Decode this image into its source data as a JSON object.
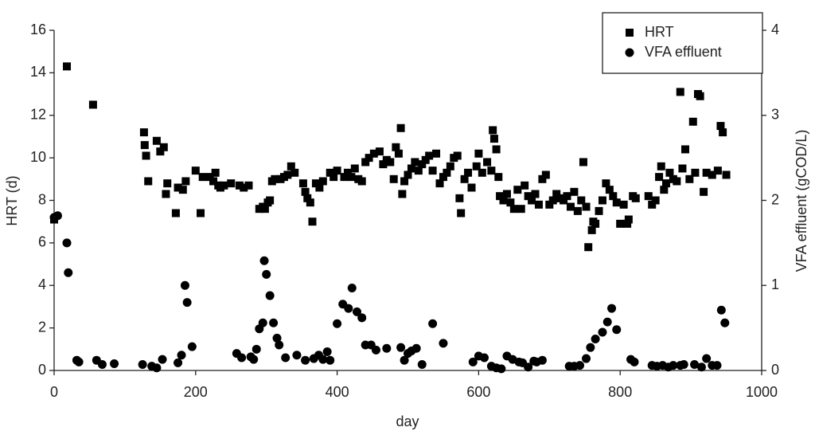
{
  "chart_data": {
    "type": "scatter",
    "xlabel": "day",
    "ylabel": "HRT (d)",
    "y2label": "VFA effluent (gCOD/L)",
    "xlim": [
      0,
      1000
    ],
    "xticks": [
      0,
      200,
      400,
      600,
      800,
      1000
    ],
    "ylim": [
      0,
      16
    ],
    "yticks": [
      0,
      2,
      4,
      6,
      8,
      10,
      12,
      14,
      16
    ],
    "y2lim": [
      0,
      4
    ],
    "y2ticks": [
      0,
      1,
      2,
      3,
      4
    ],
    "legend": "upper right",
    "series": [
      {
        "name": "HRT",
        "color": "#000000",
        "marker": "square",
        "axis": "y",
        "x": [
          0,
          18,
          55,
          127,
          128,
          130,
          133,
          145,
          150,
          155,
          158,
          160,
          172,
          175,
          182,
          186,
          200,
          207,
          210,
          220,
          225,
          228,
          232,
          235,
          240,
          250,
          262,
          268,
          275,
          290,
          295,
          298,
          302,
          305,
          308,
          312,
          320,
          325,
          330,
          335,
          340,
          352,
          355,
          358,
          362,
          365,
          370,
          375,
          380,
          390,
          395,
          400,
          410,
          415,
          420,
          425,
          430,
          435,
          440,
          445,
          452,
          460,
          465,
          470,
          475,
          480,
          483,
          487,
          490,
          492,
          495,
          500,
          505,
          510,
          515,
          520,
          525,
          530,
          535,
          540,
          545,
          550,
          555,
          560,
          565,
          570,
          575,
          573,
          580,
          585,
          590,
          597,
          600,
          605,
          612,
          618,
          620,
          622,
          625,
          628,
          630,
          635,
          640,
          645,
          650,
          655,
          660,
          665,
          670,
          675,
          680,
          685,
          690,
          695,
          700,
          705,
          710,
          715,
          720,
          725,
          730,
          735,
          740,
          745,
          748,
          752,
          755,
          760,
          762,
          765,
          770,
          775,
          780,
          785,
          790,
          795,
          800,
          805,
          810,
          812,
          818,
          822,
          840,
          845,
          850,
          855,
          858,
          862,
          865,
          870,
          875,
          880,
          885,
          888,
          892,
          898,
          903,
          906,
          910,
          913,
          918,
          922,
          930,
          938,
          942,
          945,
          950
        ],
        "values": [
          7.1,
          14.3,
          12.5,
          11.2,
          10.6,
          10.1,
          8.9,
          10.8,
          10.3,
          10.5,
          8.3,
          8.8,
          7.4,
          8.6,
          8.5,
          8.9,
          9.4,
          7.4,
          9.1,
          9.1,
          8.9,
          9.3,
          8.7,
          8.6,
          8.7,
          8.8,
          8.7,
          8.6,
          8.7,
          7.6,
          7.7,
          7.6,
          7.9,
          8.0,
          8.9,
          9.0,
          9.0,
          9.1,
          9.2,
          9.6,
          9.3,
          8.8,
          8.4,
          8.1,
          7.9,
          7.0,
          8.8,
          8.6,
          8.9,
          9.3,
          9.1,
          9.4,
          9.1,
          9.3,
          9.1,
          9.5,
          9.0,
          8.9,
          9.8,
          10.0,
          10.2,
          10.3,
          9.7,
          9.9,
          9.8,
          9.0,
          10.5,
          10.2,
          11.4,
          8.3,
          8.9,
          9.2,
          9.5,
          9.8,
          9.4,
          9.7,
          9.9,
          10.1,
          9.4,
          10.2,
          8.8,
          9.1,
          9.3,
          9.6,
          10.0,
          10.1,
          7.4,
          8.1,
          9.0,
          9.3,
          8.6,
          9.6,
          10.2,
          9.3,
          9.8,
          9.4,
          11.3,
          10.9,
          10.4,
          9.1,
          8.2,
          8.0,
          8.3,
          7.9,
          7.6,
          8.5,
          7.6,
          8.7,
          8.2,
          8.0,
          8.3,
          7.8,
          9.0,
          9.2,
          7.8,
          8.0,
          8.3,
          8.1,
          8.0,
          8.2,
          7.7,
          8.4,
          7.5,
          8.0,
          9.8,
          7.7,
          5.8,
          6.6,
          7.0,
          6.9,
          7.5,
          8.0,
          8.8,
          8.5,
          8.2,
          7.9,
          6.9,
          7.8,
          6.9,
          7.1,
          8.2,
          8.1,
          8.2,
          7.8,
          8.0,
          9.1,
          9.6,
          8.5,
          8.8,
          9.3,
          9.0,
          8.9,
          13.1,
          9.5,
          10.4,
          9.0,
          11.7,
          9.3,
          13.0,
          12.9,
          8.4,
          9.3,
          9.2,
          9.4,
          11.5,
          11.2,
          9.2
        ]
      },
      {
        "name": "VFA effluent",
        "color": "#000000",
        "marker": "circle",
        "axis": "y2",
        "x": [
          0,
          5,
          18,
          20,
          32,
          35,
          60,
          68,
          85,
          125,
          138,
          145,
          153,
          175,
          185,
          188,
          195,
          180,
          258,
          265,
          278,
          282,
          286,
          290,
          295,
          297,
          300,
          305,
          310,
          315,
          318,
          327,
          343,
          355,
          367,
          374,
          380,
          386,
          390,
          400,
          408,
          416,
          421,
          428,
          435,
          440,
          448,
          455,
          470,
          490,
          495,
          500,
          505,
          512,
          520,
          535,
          550,
          592,
          600,
          608,
          618,
          625,
          632,
          640,
          648,
          657,
          662,
          670,
          678,
          682,
          690,
          728,
          735,
          743,
          752,
          758,
          765,
          775,
          782,
          788,
          795,
          815,
          820,
          845,
          852,
          860,
          868,
          875,
          885,
          890,
          905,
          915,
          922,
          930,
          937,
          943,
          948
        ],
        "values": [
          1.8,
          1.82,
          1.5,
          1.15,
          0.12,
          0.1,
          0.12,
          0.07,
          0.08,
          0.07,
          0.05,
          0.03,
          0.13,
          0.09,
          1.0,
          0.8,
          0.28,
          0.18,
          0.2,
          0.15,
          0.16,
          0.13,
          0.25,
          0.49,
          0.56,
          1.29,
          1.13,
          0.88,
          0.56,
          0.38,
          0.3,
          0.15,
          0.18,
          0.12,
          0.14,
          0.18,
          0.13,
          0.22,
          0.12,
          0.55,
          0.78,
          0.73,
          0.97,
          0.69,
          0.62,
          0.3,
          0.3,
          0.24,
          0.26,
          0.27,
          0.12,
          0.2,
          0.23,
          0.26,
          0.07,
          0.55,
          0.32,
          0.1,
          0.17,
          0.15,
          0.05,
          0.03,
          0.02,
          0.17,
          0.13,
          0.1,
          0.09,
          0.04,
          0.11,
          0.1,
          0.12,
          0.05,
          0.05,
          0.06,
          0.14,
          0.27,
          0.37,
          0.45,
          0.57,
          0.73,
          0.48,
          0.13,
          0.1,
          0.06,
          0.05,
          0.06,
          0.04,
          0.06,
          0.06,
          0.07,
          0.07,
          0.04,
          0.14,
          0.06,
          0.06,
          0.71,
          0.56
        ]
      }
    ]
  }
}
